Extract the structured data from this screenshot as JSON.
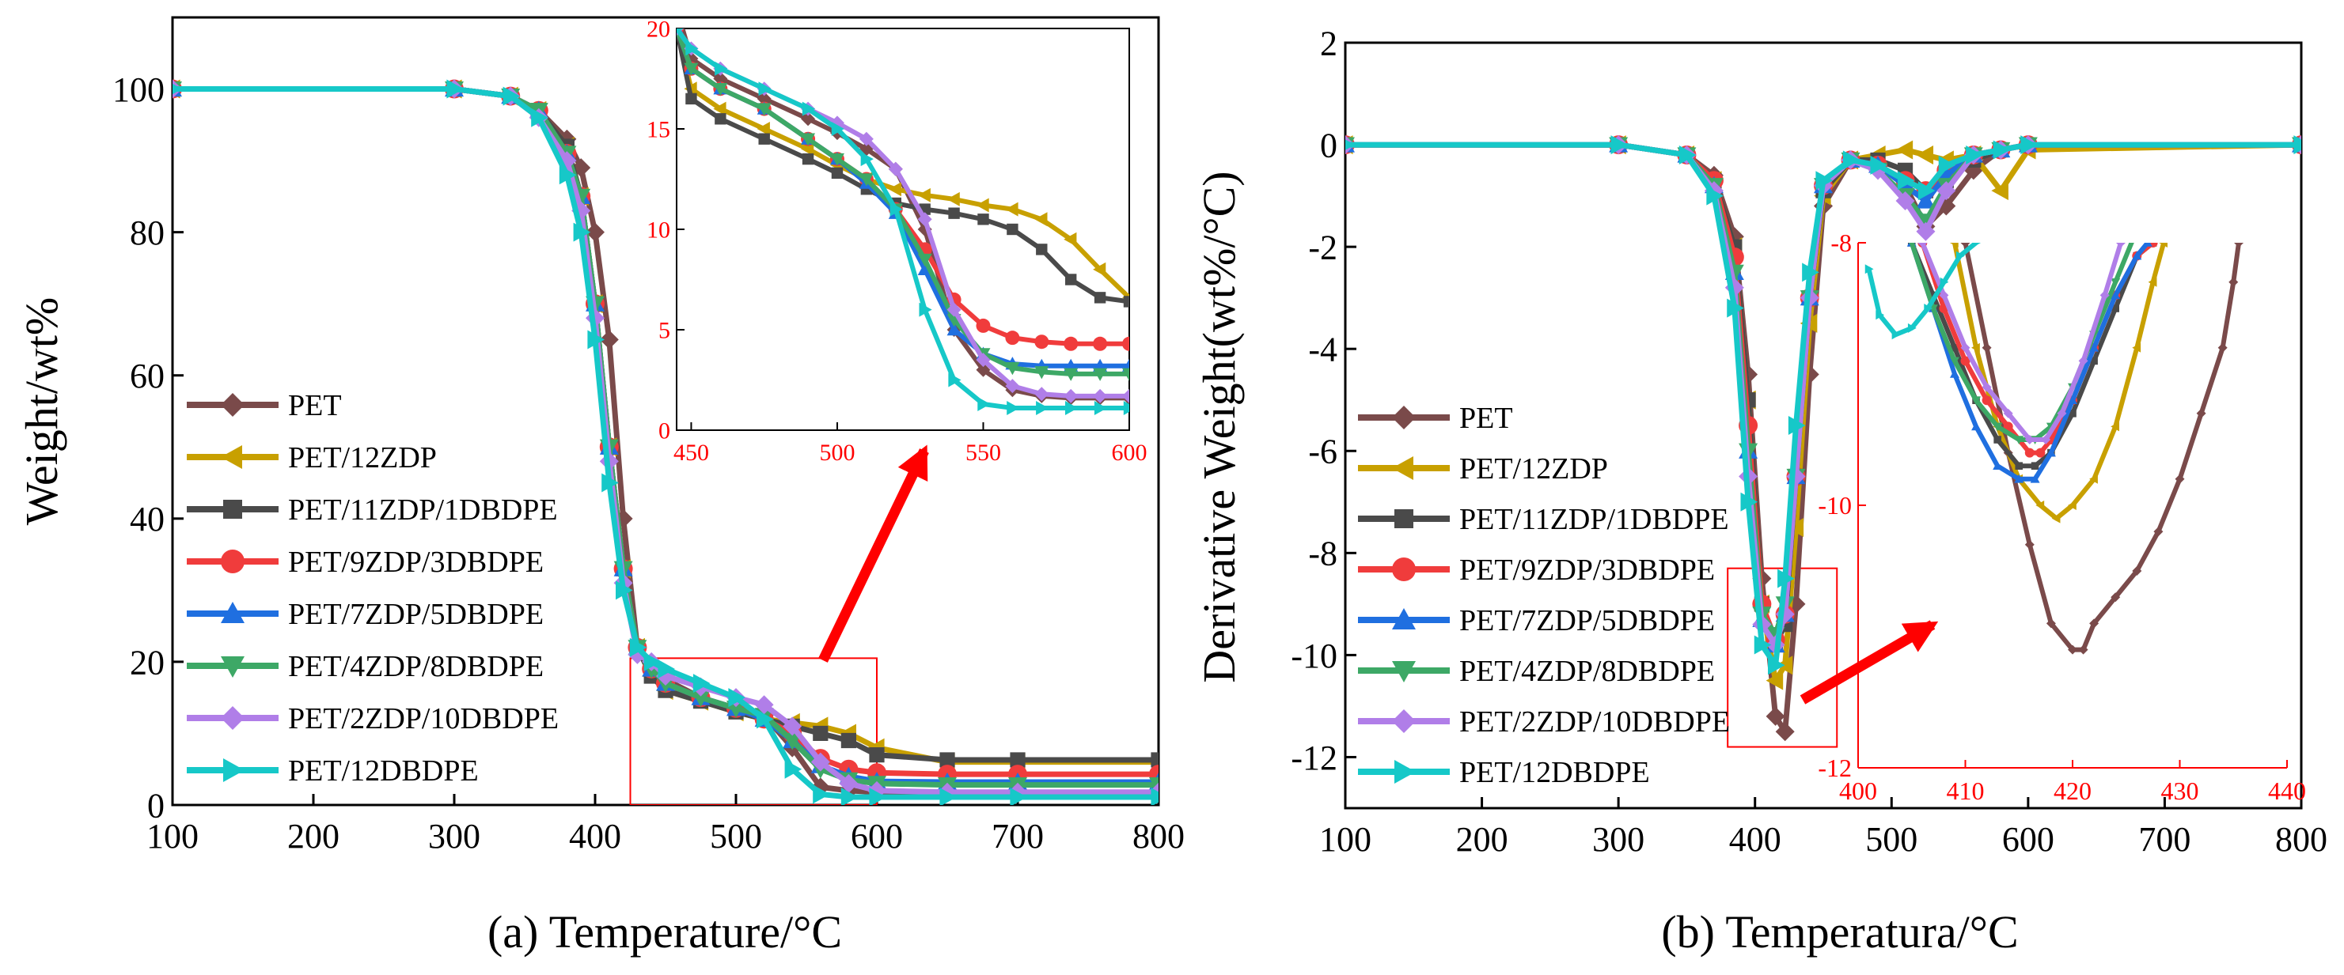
{
  "series_styles": [
    {
      "name": "PET",
      "color": "#7a4a4a",
      "marker": "diamond"
    },
    {
      "name": "PET/12ZDP",
      "color": "#c8a000",
      "marker": "tri-left"
    },
    {
      "name": "PET/11ZDP/1DBDPE",
      "color": "#4a4a4a",
      "marker": "square"
    },
    {
      "name": "PET/9ZDP/3DBDPE",
      "color": "#f03c3c",
      "marker": "circle"
    },
    {
      "name": "PET/7ZDP/5DBDPE",
      "color": "#1f6fe0",
      "marker": "tri-up"
    },
    {
      "name": "PET/4ZDP/8DBDPE",
      "color": "#3da866",
      "marker": "tri-down"
    },
    {
      "name": "PET/2ZDP/10DBDPE",
      "color": "#b07ee8",
      "marker": "diamond"
    },
    {
      "name": "PET/12DBDPE",
      "color": "#16c8c8",
      "marker": "tri-right"
    }
  ],
  "highlight_color": "#ff0000",
  "chart_data": [
    {
      "id": "a",
      "type": "line",
      "caption": "(a) Temperature/°C",
      "xlabel": "",
      "ylabel": "Weight/wt%",
      "xlim": [
        100,
        800
      ],
      "ylim": [
        0,
        110
      ],
      "xticks": [
        100,
        200,
        300,
        400,
        500,
        600,
        700,
        800
      ],
      "yticks": [
        0,
        20,
        40,
        60,
        80,
        100
      ],
      "legend": "lower-left",
      "x": [
        100,
        300,
        340,
        360,
        380,
        390,
        400,
        410,
        420,
        430,
        440,
        450,
        475,
        500,
        520,
        540,
        560,
        580,
        600,
        650,
        700,
        800
      ],
      "series": [
        {
          "name": "PET",
          "values": [
            100,
            100,
            99,
            97,
            93,
            89,
            80,
            65,
            40,
            22,
            19,
            17.5,
            15,
            13.5,
            12.5,
            8,
            2.5,
            2,
            1.8,
            1.7,
            1.7,
            1.7
          ]
        },
        {
          "name": "PET/12ZDP",
          "values": [
            100,
            100,
            99,
            97,
            92,
            85,
            70,
            50,
            33,
            22,
            18,
            16,
            14.5,
            13,
            12,
            11.5,
            11,
            10,
            8,
            6,
            6,
            6
          ]
        },
        {
          "name": "PET/11ZDP/1DBDPE",
          "values": [
            100,
            100,
            99,
            97,
            92,
            85,
            70,
            50,
            33,
            22,
            18,
            16,
            14.5,
            13,
            12,
            11,
            10,
            9,
            7,
            6.3,
            6.3,
            6.3
          ]
        },
        {
          "name": "PET/9ZDP/3DBDPE",
          "values": [
            100,
            100,
            99,
            97,
            91,
            85,
            70,
            50,
            33,
            22,
            19,
            17,
            15,
            13.5,
            12,
            10,
            6.5,
            5,
            4.5,
            4.3,
            4.3,
            4.3
          ]
        },
        {
          "name": "PET/7ZDP/5DBDPE",
          "values": [
            100,
            100,
            99,
            97,
            91,
            85,
            70,
            50,
            33,
            22,
            19,
            17,
            15,
            13.5,
            12,
            9,
            5.5,
            4,
            3.3,
            3.2,
            3.2,
            3.2
          ]
        },
        {
          "name": "PET/4ZDP/8DBDPE",
          "values": [
            100,
            100,
            99,
            97,
            91,
            85,
            70,
            50,
            33,
            22,
            19,
            17,
            15,
            13.5,
            12.5,
            9,
            5,
            3.5,
            3,
            2.8,
            2.8,
            2.8
          ]
        },
        {
          "name": "PET/2ZDP/10DBDPE",
          "values": [
            100,
            100,
            99,
            96,
            90,
            83,
            68,
            48,
            31,
            21,
            20,
            18,
            16.5,
            15,
            14,
            11,
            6,
            3,
            2,
            1.8,
            1.8,
            1.8
          ]
        },
        {
          "name": "PET/12DBDPE",
          "values": [
            100,
            100,
            99,
            96,
            88,
            80,
            65,
            45,
            30,
            22,
            20,
            19,
            17,
            15,
            12,
            5,
            1.5,
            1.1,
            1.1,
            1.1,
            1.1,
            1.1
          ]
        }
      ],
      "zoom_box": {
        "x": [
          425,
          600
        ],
        "y": [
          0,
          20.5
        ]
      }
    },
    {
      "id": "a-inset",
      "type": "line",
      "xlim": [
        445,
        600
      ],
      "ylim": [
        0,
        20
      ],
      "xticks": [
        450,
        500,
        550,
        600
      ],
      "yticks": [
        0,
        5,
        10,
        15,
        20
      ],
      "x": [
        445,
        450,
        460,
        475,
        490,
        500,
        510,
        520,
        530,
        540,
        550,
        560,
        570,
        580,
        590,
        600
      ],
      "series": [
        {
          "name": "PET",
          "values": [
            21,
            18.5,
            17.5,
            16.5,
            15.5,
            14.8,
            14,
            13,
            10,
            5,
            3,
            2,
            1.7,
            1.6,
            1.6,
            1.6
          ]
        },
        {
          "name": "PET/12ZDP",
          "values": [
            20,
            17,
            16,
            15,
            14,
            13.2,
            12.5,
            12,
            11.7,
            11.5,
            11.2,
            11,
            10.5,
            9.5,
            8,
            6.6
          ]
        },
        {
          "name": "PET/11ZDP/1DBDPE",
          "values": [
            20,
            16.5,
            15.5,
            14.5,
            13.5,
            12.8,
            12,
            11.3,
            11,
            10.8,
            10.5,
            10,
            9,
            7.5,
            6.6,
            6.4
          ]
        },
        {
          "name": "PET/9ZDP/3DBDPE",
          "values": [
            20,
            18,
            17,
            16,
            14.5,
            13.5,
            12.5,
            11,
            9,
            6.5,
            5.2,
            4.6,
            4.4,
            4.3,
            4.3,
            4.3
          ]
        },
        {
          "name": "PET/7ZDP/5DBDPE",
          "values": [
            20,
            18,
            17,
            16,
            14.5,
            13.5,
            12.3,
            10.8,
            8,
            5,
            3.8,
            3.3,
            3.2,
            3.2,
            3.2,
            3.2
          ]
        },
        {
          "name": "PET/4ZDP/8DBDPE",
          "values": [
            20,
            18,
            17,
            16,
            14.5,
            13.5,
            12.5,
            11,
            8.5,
            5.5,
            3.8,
            3.1,
            2.9,
            2.8,
            2.8,
            2.8
          ]
        },
        {
          "name": "PET/2ZDP/10DBDPE",
          "values": [
            20,
            19,
            18,
            17,
            16,
            15.3,
            14.5,
            13,
            10.5,
            6,
            3.5,
            2.2,
            1.8,
            1.7,
            1.7,
            1.7
          ]
        },
        {
          "name": "PET/12DBDPE",
          "values": [
            20,
            19,
            18,
            17,
            16,
            15,
            13.5,
            11,
            6,
            2.5,
            1.3,
            1.1,
            1.1,
            1.1,
            1.1,
            1.1
          ]
        }
      ]
    },
    {
      "id": "b",
      "type": "line",
      "caption": "(b) Temperatura/°C",
      "xlabel": "",
      "ylabel": "Derivative Weight(wt%/°C)",
      "xlim": [
        100,
        800
      ],
      "ylim": [
        -13,
        2
      ],
      "xticks": [
        100,
        200,
        300,
        400,
        500,
        600,
        700,
        800
      ],
      "yticks": [
        -12,
        -10,
        -8,
        -6,
        -4,
        -2,
        0,
        2
      ],
      "legend": "lower-left",
      "x": [
        100,
        300,
        350,
        370,
        385,
        395,
        405,
        415,
        422,
        430,
        440,
        450,
        470,
        490,
        510,
        525,
        540,
        560,
        580,
        600,
        800
      ],
      "series": [
        {
          "name": "PET",
          "values": [
            0,
            0,
            -0.2,
            -0.6,
            -1.8,
            -4.5,
            -8.5,
            -11.2,
            -11.5,
            -9,
            -4.5,
            -1.2,
            -0.3,
            -0.4,
            -0.8,
            -1.6,
            -1.2,
            -0.5,
            -0.1,
            0,
            0
          ]
        },
        {
          "name": "PET/12ZDP",
          "values": [
            0,
            0,
            -0.2,
            -0.7,
            -2,
            -5,
            -9,
            -10.5,
            -10.2,
            -7.5,
            -3.5,
            -1,
            -0.3,
            -0.2,
            -0.1,
            -0.2,
            -0.3,
            -0.2,
            -0.9,
            -0.1,
            0
          ]
        },
        {
          "name": "PET/11ZDP/1DBDPE",
          "values": [
            0,
            0,
            -0.2,
            -0.7,
            -2,
            -5,
            -9,
            -9.8,
            -9.4,
            -6.5,
            -3,
            -0.9,
            -0.3,
            -0.3,
            -0.5,
            -0.9,
            -0.7,
            -0.3,
            -0.1,
            0,
            0
          ]
        },
        {
          "name": "PET/9ZDP/3DBDPE",
          "values": [
            0,
            0,
            -0.2,
            -0.7,
            -2.2,
            -5.5,
            -9,
            -9.7,
            -9.2,
            -6.5,
            -3,
            -0.8,
            -0.3,
            -0.4,
            -0.7,
            -0.9,
            -0.5,
            -0.2,
            -0.1,
            0,
            0
          ]
        },
        {
          "name": "PET/7ZDP/5DBDPE",
          "values": [
            0,
            0,
            -0.2,
            -0.8,
            -2.5,
            -6,
            -9.3,
            -9.8,
            -9.2,
            -6.5,
            -3,
            -0.8,
            -0.3,
            -0.4,
            -0.8,
            -1.1,
            -0.6,
            -0.2,
            -0.1,
            0,
            0
          ]
        },
        {
          "name": "PET/4ZDP/8DBDPE",
          "values": [
            0,
            0,
            -0.2,
            -0.8,
            -2.5,
            -6,
            -9.2,
            -9.6,
            -9,
            -6.5,
            -3,
            -0.8,
            -0.3,
            -0.5,
            -1,
            -1.5,
            -0.8,
            -0.2,
            -0.1,
            0,
            0
          ]
        },
        {
          "name": "PET/2ZDP/10DBDPE",
          "values": [
            0,
            0,
            -0.2,
            -0.9,
            -2.8,
            -6.5,
            -9.4,
            -9.8,
            -9.2,
            -6.5,
            -3,
            -0.8,
            -0.3,
            -0.5,
            -1.1,
            -1.7,
            -0.9,
            -0.2,
            -0.1,
            0,
            0
          ]
        },
        {
          "name": "PET/12DBDPE",
          "values": [
            0,
            0,
            -0.2,
            -1,
            -3.2,
            -7,
            -9.8,
            -10.2,
            -8.5,
            -5.5,
            -2.5,
            -0.7,
            -0.3,
            -0.4,
            -0.7,
            -0.9,
            -0.4,
            -0.2,
            -0.1,
            0,
            0
          ]
        }
      ],
      "zoom_box": {
        "x": [
          380,
          460
        ],
        "y": [
          -11.8,
          -8.3
        ]
      }
    },
    {
      "id": "b-inset",
      "type": "line",
      "xlim": [
        400,
        440
      ],
      "ylim": [
        -12,
        -8
      ],
      "xticks": [
        400,
        410,
        420,
        430,
        440
      ],
      "yticks": [
        -12,
        -10,
        -8
      ],
      "series": [
        {
          "name": "PET",
          "x": [
            410,
            412,
            414,
            416,
            418,
            420,
            421,
            422,
            424,
            426,
            428,
            430,
            432,
            434,
            435,
            435.5
          ],
          "values": [
            -8,
            -8.8,
            -9.6,
            -10.3,
            -10.9,
            -11.1,
            -11.1,
            -10.9,
            -10.7,
            -10.5,
            -10.2,
            -9.8,
            -9.3,
            -8.8,
            -8.3,
            -8
          ]
        },
        {
          "name": "PET/12ZDP",
          "x": [
            409,
            411,
            413,
            415,
            417,
            418.5,
            420,
            422,
            424,
            426,
            427.5,
            428.5
          ],
          "values": [
            -8,
            -8.8,
            -9.4,
            -9.8,
            -10,
            -10.1,
            -10,
            -9.8,
            -9.4,
            -8.8,
            -8.3,
            -8
          ]
        },
        {
          "name": "PET/11ZDP/1DBDPE",
          "x": [
            405,
            407,
            409,
            411,
            413,
            415,
            416.5,
            418,
            420,
            422,
            424,
            426,
            427.5
          ],
          "values": [
            -8,
            -8.4,
            -8.8,
            -9.2,
            -9.5,
            -9.7,
            -9.7,
            -9.6,
            -9.3,
            -8.9,
            -8.5,
            -8.1,
            -8
          ]
        },
        {
          "name": "PET/9ZDP/3DBDPE",
          "x": [
            406,
            408,
            410,
            412,
            414,
            416,
            417,
            418,
            420,
            422,
            424,
            426,
            427.5
          ],
          "values": [
            -8,
            -8.5,
            -8.9,
            -9.2,
            -9.4,
            -9.6,
            -9.6,
            -9.5,
            -9.2,
            -8.8,
            -8.4,
            -8.1,
            -8
          ]
        },
        {
          "name": "PET/7ZDP/5DBDPE",
          "x": [
            405,
            407,
            409,
            411,
            413,
            415,
            416.5,
            418,
            420,
            422,
            424,
            426,
            427
          ],
          "values": [
            -8,
            -8.5,
            -9,
            -9.4,
            -9.7,
            -9.8,
            -9.8,
            -9.6,
            -9.2,
            -8.8,
            -8.4,
            -8.1,
            -8
          ]
        },
        {
          "name": "PET/4ZDP/8DBDPE",
          "x": [
            405,
            407,
            409,
            411,
            413,
            415,
            416.5,
            418,
            420,
            422,
            424,
            425.5
          ],
          "values": [
            -8,
            -8.5,
            -8.9,
            -9.2,
            -9.4,
            -9.5,
            -9.5,
            -9.4,
            -9.1,
            -8.7,
            -8.3,
            -8
          ]
        },
        {
          "name": "PET/2ZDP/10DBDPE",
          "x": [
            406,
            408,
            410,
            412,
            414,
            416,
            417.5,
            419,
            421,
            423,
            424.5
          ],
          "values": [
            -8,
            -8.4,
            -8.8,
            -9.1,
            -9.3,
            -9.5,
            -9.5,
            -9.3,
            -8.9,
            -8.4,
            -8
          ]
        },
        {
          "name": "PET/12DBDPE",
          "x": [
            401,
            402,
            403.5,
            405,
            406.5,
            408,
            409.5,
            411
          ],
          "values": [
            -8.2,
            -8.55,
            -8.7,
            -8.65,
            -8.5,
            -8.3,
            -8.1,
            -8
          ]
        }
      ]
    }
  ]
}
